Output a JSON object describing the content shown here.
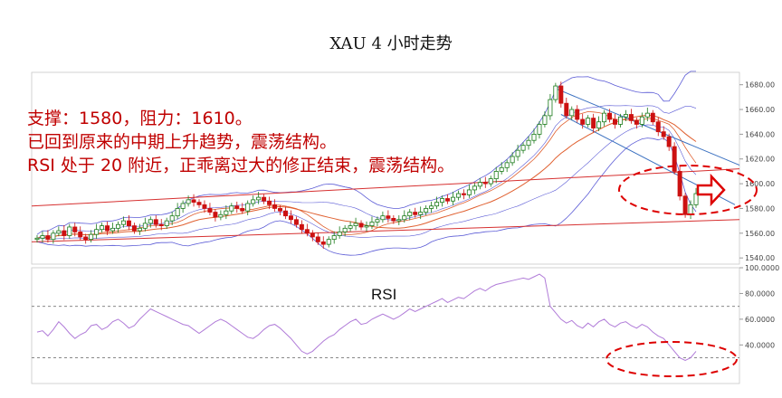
{
  "chart_title": "XAU 4 小时走势",
  "annotations": [
    "支撑：1580，阻力：1610。",
    "已回到原来的中期上升趋势，震荡结构。",
    "RSI 处于 20 附近，正乖离过大的修正结束，震荡结构。"
  ],
  "chart_data": [
    {
      "type": "candlestick",
      "title": "XAU 4 小时走势",
      "ylim": [
        1535,
        1690
      ],
      "y_ticks": [
        "1680.00",
        "1660.00",
        "1640.00",
        "1620.00",
        "1600.00",
        "1580.00",
        "1560.00",
        "1540.00"
      ],
      "y_tick_values": [
        1680,
        1660,
        1640,
        1620,
        1600,
        1580,
        1560,
        1540
      ],
      "close_series": [
        1556,
        1558,
        1555,
        1560,
        1562,
        1558,
        1565,
        1561,
        1557,
        1555,
        1559,
        1563,
        1566,
        1562,
        1564,
        1567,
        1570,
        1566,
        1562,
        1564,
        1568,
        1571,
        1567,
        1566,
        1570,
        1574,
        1580,
        1584,
        1587,
        1585,
        1583,
        1580,
        1577,
        1573,
        1575,
        1578,
        1582,
        1580,
        1578,
        1584,
        1587,
        1589,
        1586,
        1583,
        1580,
        1578,
        1574,
        1571,
        1567,
        1563,
        1560,
        1557,
        1553,
        1551,
        1555,
        1558,
        1561,
        1564,
        1566,
        1568,
        1565,
        1566,
        1569,
        1571,
        1574,
        1572,
        1570,
        1571,
        1574,
        1577,
        1575,
        1577,
        1580,
        1582,
        1585,
        1588,
        1586,
        1589,
        1592,
        1591,
        1595,
        1598,
        1601,
        1600,
        1604,
        1610,
        1613,
        1617,
        1622,
        1627,
        1631,
        1635,
        1640,
        1648,
        1655,
        1668,
        1679,
        1665,
        1655,
        1660,
        1652,
        1648,
        1653,
        1645,
        1650,
        1657,
        1652,
        1648,
        1654,
        1656,
        1651,
        1648,
        1654,
        1657,
        1650,
        1642,
        1638,
        1630,
        1610,
        1590,
        1575,
        1583,
        1592
      ],
      "bollinger_upper_end": [
        1677,
        1678
      ],
      "ma_series": "moving averages and Bollinger bands overlay",
      "trendlines": {
        "support_support": 1580,
        "resistance": 1610
      }
    },
    {
      "type": "line",
      "title": "RSI",
      "ylim": [
        10,
        100
      ],
      "y_ticks": [
        "100.0000",
        "80.0000",
        "60.0000",
        "40.0000"
      ],
      "y_tick_values": [
        100,
        80,
        60,
        40
      ],
      "reference_lines": [
        70,
        30
      ],
      "values": [
        50,
        51,
        47,
        52,
        58,
        54,
        49,
        45,
        48,
        50,
        55,
        56,
        52,
        54,
        58,
        60,
        57,
        53,
        55,
        60,
        64,
        68,
        66,
        64,
        62,
        60,
        58,
        56,
        55,
        52,
        49,
        52,
        55,
        58,
        60,
        58,
        55,
        52,
        49,
        46,
        45,
        48,
        52,
        55,
        56,
        53,
        49,
        45,
        40,
        35,
        33,
        35,
        39,
        43,
        46,
        48,
        52,
        55,
        58,
        60,
        56,
        57,
        60,
        62,
        64,
        62,
        60,
        62,
        65,
        68,
        66,
        68,
        70,
        72,
        74,
        76,
        73,
        75,
        77,
        76,
        79,
        82,
        84,
        82,
        85,
        87,
        88,
        89,
        90,
        91,
        92,
        91,
        93,
        95,
        92,
        70,
        65,
        60,
        57,
        59,
        55,
        53,
        57,
        54,
        58,
        60,
        56,
        54,
        57,
        58,
        55,
        53,
        56,
        54,
        50,
        47,
        45,
        40,
        35,
        30,
        28,
        30,
        35
      ]
    }
  ],
  "rsi_label": "RSI",
  "colors": {
    "candle_up": "#1a7a1a",
    "candle_down": "#cc1111",
    "bollinger": "#5b5bd6",
    "ma": "#e06030",
    "trend_red": "#d63030",
    "trend_blue": "#3a70c0",
    "rsi_line": "#b07bd8",
    "annotation": "#c00000",
    "ellipse": "#dd0000"
  }
}
